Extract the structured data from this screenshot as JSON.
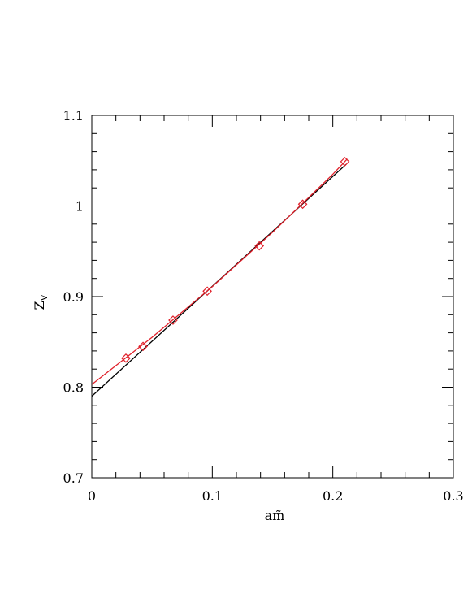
{
  "chart_data": {
    "type": "line",
    "xlabel": "am̃",
    "ylabel": "Z",
    "ylabel_sub": "V",
    "xlim": [
      0,
      0.3
    ],
    "xticks": [
      0,
      0.1,
      0.2,
      0.3
    ],
    "ylim": [
      0.7,
      1.1
    ],
    "yticks": [
      0.7,
      0.8,
      0.9,
      1,
      1.1
    ],
    "minor_per_major": 5,
    "series": [
      {
        "color": "#000000",
        "x": [
          0,
          0.211
        ],
        "values": [
          0.79,
          1.046
        ]
      },
      {
        "color": "#e0202a",
        "x": [
          0,
          0.05,
          0.1,
          0.15,
          0.2,
          0.212
        ],
        "values": [
          0.803,
          0.855,
          0.911,
          0.971,
          1.035,
          1.052
        ]
      },
      {
        "color": "#e0202a",
        "marker": "diamond",
        "x": [
          0.0283,
          0.0425,
          0.0674,
          0.0958,
          0.139,
          0.175,
          0.21
        ],
        "values": [
          0.832,
          0.845,
          0.874,
          0.906,
          0.956,
          1.002,
          1.049
        ]
      }
    ]
  }
}
